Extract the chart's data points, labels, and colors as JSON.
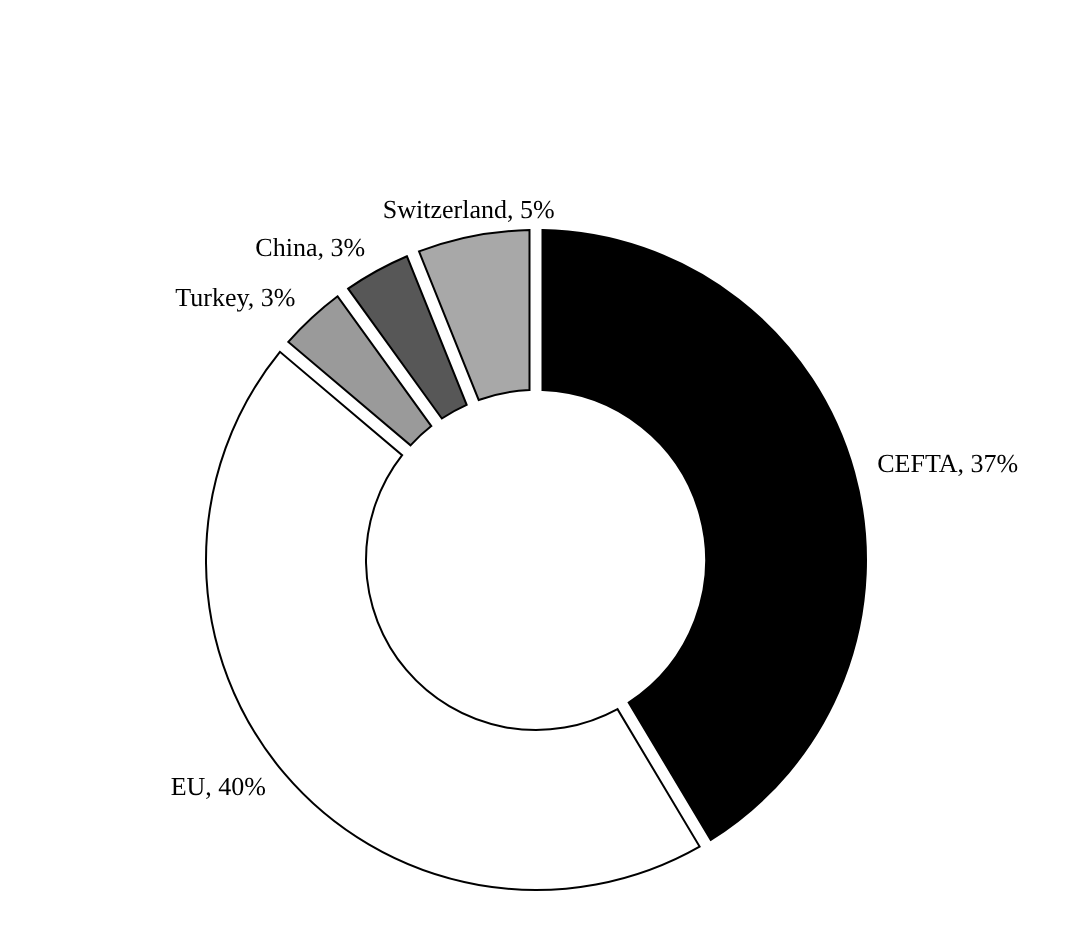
{
  "chart_data": {
    "type": "donut",
    "categories": [
      "CEFTA",
      "EU",
      "Turkey",
      "China",
      "Switzerland"
    ],
    "values": [
      37,
      40,
      3,
      3,
      5
    ],
    "value_labels": [
      "37%",
      "40%",
      "3%",
      "3%",
      "5%"
    ],
    "colors": [
      "#000000",
      "#ffffff",
      "#9a9a9a",
      "#575757",
      "#a8a8a8"
    ],
    "legend": false
  }
}
